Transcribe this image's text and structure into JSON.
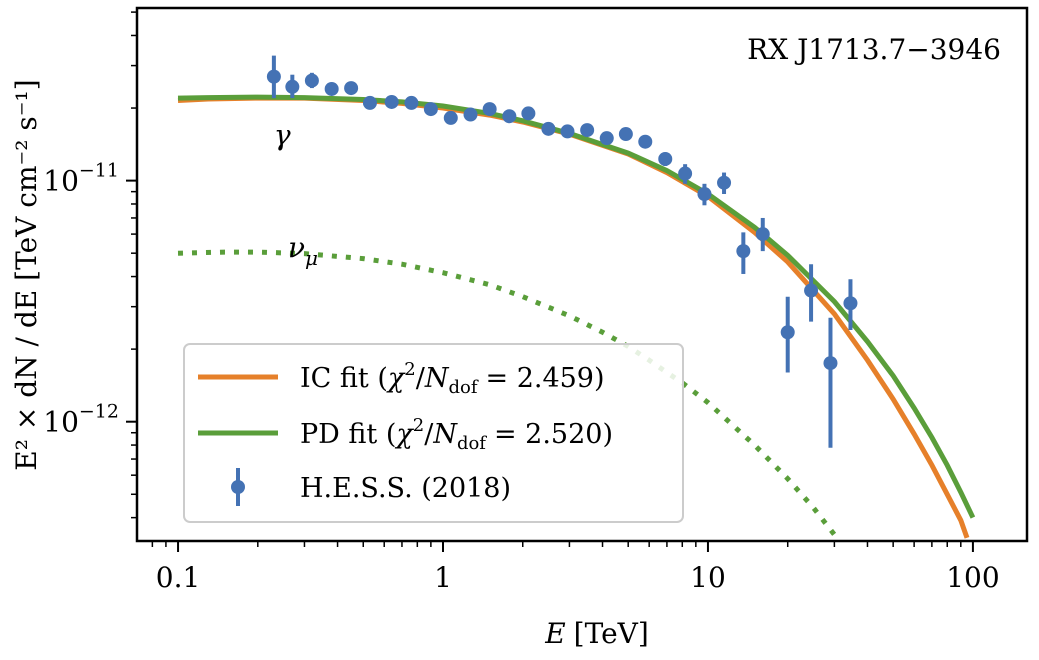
{
  "chart_data": {
    "type": "line",
    "title": "",
    "annotation_source": "RX J1713.7−3946",
    "xlabel_var": "E",
    "xlabel_unit": "[TeV]",
    "ylabel": "E² × dN / dE [TeV cm⁻² s⁻¹]",
    "x_scale": "log",
    "y_scale": "log",
    "xlim": [
      0.07,
      160
    ],
    "ylim": [
      3.2e-13,
      5.2e-11
    ],
    "x_ticks": [
      {
        "value": 0.1,
        "label": "0.1"
      },
      {
        "value": 1,
        "label": "1"
      },
      {
        "value": 10,
        "label": "10"
      },
      {
        "value": 100,
        "label": "100"
      }
    ],
    "y_ticks": [
      {
        "value": 1e-11,
        "base": "10",
        "exp": "−11"
      },
      {
        "value": 1e-12,
        "base": "10",
        "exp": "−12"
      }
    ],
    "grid": false,
    "legend_position": "bottom-left",
    "series": [
      {
        "name": "IC fit (χ²/N_dof = 2.459)",
        "label_prefix": "IC fit (",
        "chi_value": "= 2.459)",
        "kind": "line",
        "color": "#e6802a",
        "style": "solid",
        "x": [
          0.1,
          0.13,
          0.2,
          0.3,
          0.5,
          0.7,
          1,
          1.5,
          2,
          3,
          5,
          7,
          10,
          15,
          20,
          30,
          40,
          50,
          60,
          70,
          80,
          90,
          95
        ],
        "y": [
          2.15e-11,
          2.18e-11,
          2.2e-11,
          2.2e-11,
          2.15e-11,
          2.09e-11,
          2e-11,
          1.87e-11,
          1.75e-11,
          1.56e-11,
          1.29e-11,
          1.08e-11,
          8.6e-12,
          6.1e-12,
          4.6e-12,
          2.8e-12,
          1.8e-12,
          1.24e-12,
          8.9e-13,
          6.6e-13,
          5e-13,
          3.9e-13,
          3.3e-13
        ]
      },
      {
        "name": "PD fit (χ²/N_dof = 2.520)",
        "label_prefix": "PD fit (",
        "chi_value": "= 2.520)",
        "kind": "line",
        "color": "#5a9e3a",
        "style": "solid",
        "x": [
          0.1,
          0.13,
          0.2,
          0.3,
          0.5,
          0.7,
          1,
          1.5,
          2,
          3,
          5,
          7,
          10,
          15,
          20,
          30,
          40,
          50,
          60,
          70,
          80,
          90,
          100
        ],
        "y": [
          2.2e-11,
          2.21e-11,
          2.22e-11,
          2.21e-11,
          2.17e-11,
          2.12e-11,
          2.04e-11,
          1.9e-11,
          1.77e-11,
          1.57e-11,
          1.3e-11,
          1.1e-11,
          8.8e-12,
          6.4e-12,
          4.9e-12,
          3.15e-12,
          2.15e-12,
          1.55e-12,
          1.14e-12,
          8.6e-13,
          6.6e-13,
          5.1e-13,
          4e-13
        ]
      },
      {
        "name": "ν_μ",
        "label_base": "ν",
        "label_sub": "μ",
        "kind": "line",
        "color": "#5a9e3a",
        "style": "dotted",
        "in_legend": false,
        "x": [
          0.1,
          0.15,
          0.2,
          0.3,
          0.5,
          0.7,
          1,
          1.5,
          2,
          3,
          4,
          5,
          6,
          7,
          8,
          10,
          12,
          15,
          20,
          25,
          30
        ],
        "y": [
          5e-12,
          5.05e-12,
          5.05e-12,
          4.98e-12,
          4.75e-12,
          4.5e-12,
          4.15e-12,
          3.7e-12,
          3.3e-12,
          2.75e-12,
          2.35e-12,
          2.05e-12,
          1.8e-12,
          1.6e-12,
          1.45e-12,
          1.2e-12,
          1e-12,
          8e-13,
          5.8e-13,
          4.4e-13,
          3.4e-13
        ]
      },
      {
        "name": "H.E.S.S. (2018)",
        "kind": "errorbar",
        "color": "#4472b4",
        "x": [
          0.23,
          0.27,
          0.32,
          0.38,
          0.45,
          0.53,
          0.64,
          0.76,
          0.9,
          1.07,
          1.27,
          1.5,
          1.78,
          2.1,
          2.5,
          2.95,
          3.5,
          4.15,
          4.9,
          5.8,
          6.9,
          8.2,
          9.7,
          11.5,
          13.6,
          16.1,
          20,
          24.5,
          29,
          34.5
        ],
        "y": [
          2.7e-11,
          2.45e-11,
          2.6e-11,
          2.4e-11,
          2.42e-11,
          2.1e-11,
          2.12e-11,
          2.1e-11,
          1.98e-11,
          1.82e-11,
          1.88e-11,
          1.98e-11,
          1.85e-11,
          1.9e-11,
          1.64e-11,
          1.6e-11,
          1.62e-11,
          1.5e-11,
          1.56e-11,
          1.45e-11,
          1.23e-11,
          1.07e-11,
          8.8e-12,
          9.8e-12,
          5.1e-12,
          6e-12,
          2.35e-12,
          3.5e-12,
          1.75e-12,
          3.1e-12
        ],
        "y_low": [
          2.2e-11,
          2.2e-11,
          2.42e-11,
          2.3e-11,
          2.32e-11,
          2.02e-11,
          2.04e-11,
          2.03e-11,
          1.91e-11,
          1.76e-11,
          1.82e-11,
          1.92e-11,
          1.79e-11,
          1.84e-11,
          1.58e-11,
          1.54e-11,
          1.56e-11,
          1.44e-11,
          1.5e-11,
          1.38e-11,
          1.15e-11,
          9.7e-12,
          7.9e-12,
          8.8e-12,
          4.1e-12,
          5.1e-12,
          1.6e-12,
          2.6e-12,
          7.8e-13,
          2.4e-12
        ],
        "y_high": [
          3.3e-11,
          2.75e-11,
          2.8e-11,
          2.5e-11,
          2.52e-11,
          2.18e-11,
          2.2e-11,
          2.17e-11,
          2.05e-11,
          1.88e-11,
          1.94e-11,
          2.04e-11,
          1.91e-11,
          1.96e-11,
          1.7e-11,
          1.66e-11,
          1.68e-11,
          1.56e-11,
          1.62e-11,
          1.52e-11,
          1.31e-11,
          1.17e-11,
          9.7e-12,
          1.08e-11,
          6.1e-12,
          7e-12,
          3.3e-12,
          4.5e-12,
          2.7e-12,
          3.9e-12
        ]
      }
    ],
    "annotations": [
      {
        "text": "γ",
        "x": 0.23,
        "y": 1.55e-11
      },
      {
        "text": "νμ",
        "x": 0.26,
        "y": 5e-12
      }
    ]
  }
}
